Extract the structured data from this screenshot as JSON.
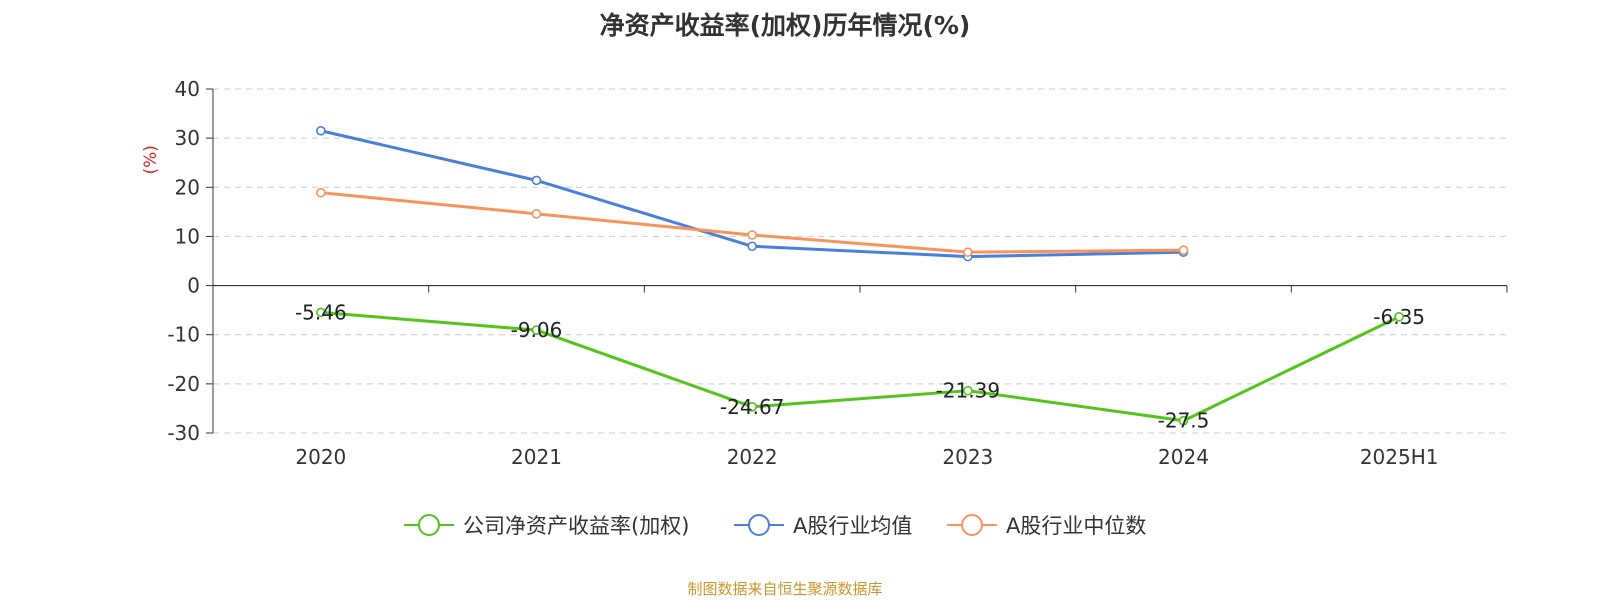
{
  "chart_data": {
    "type": "line",
    "title": "净资产收益率(加权)历年情况(%)",
    "ylabel": "(%)",
    "ylim": [
      -30,
      40
    ],
    "yticks": [
      40,
      30,
      20,
      10,
      0,
      -10,
      -20,
      -30
    ],
    "categories": [
      "2020",
      "2021",
      "2022",
      "2023",
      "2024",
      "2025H1"
    ],
    "grid": true,
    "legend_position": "bottom",
    "series": [
      {
        "name": "公司净资产收益率(加权)",
        "color": "#52c41a",
        "values": [
          -5.46,
          -9.06,
          -24.67,
          -21.39,
          -27.5,
          -6.35
        ],
        "data_labels": [
          "-5.46",
          "-9.06",
          "-24.67",
          "-21.39",
          "-27.5",
          "-6.35"
        ]
      },
      {
        "name": "A股行业均值",
        "color": "#4a7fdc",
        "values": [
          31.5,
          21.4,
          8.0,
          5.9,
          6.8,
          null
        ]
      },
      {
        "name": "A股行业中位数",
        "color": "#f8935c",
        "values": [
          18.9,
          14.6,
          10.3,
          6.8,
          7.2,
          null
        ]
      }
    ],
    "axis_label_color": "#e02020"
  },
  "footer": {
    "source": "制图数据来自恒生聚源数据库"
  }
}
